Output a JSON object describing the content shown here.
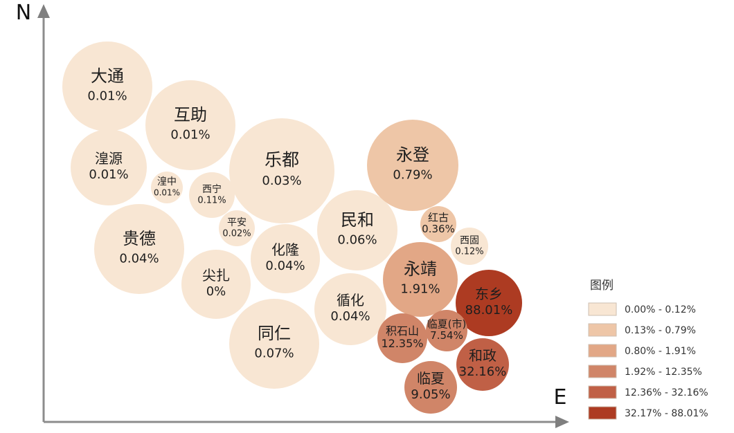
{
  "chart_data": {
    "type": "bubble",
    "axes": {
      "north_label": "N",
      "east_label": "E"
    },
    "legend": {
      "title": "图例",
      "classes": [
        {
          "label": "0.00% - 0.12%",
          "color": "#f8e6d3"
        },
        {
          "label": "0.13% - 0.79%",
          "color": "#eec6a7"
        },
        {
          "label": "0.80% - 1.91%",
          "color": "#e2a786"
        },
        {
          "label": "1.92% - 12.35%",
          "color": "#d08568"
        },
        {
          "label": "12.36% - 32.16%",
          "color": "#c06046"
        },
        {
          "label": "32.17% - 88.01%",
          "color": "#ad3b22"
        }
      ]
    },
    "bubbles": [
      {
        "name": "大通",
        "value_label": "0.01%",
        "value": 0.01,
        "class": 0
      },
      {
        "name": "互助",
        "value_label": "0.01%",
        "value": 0.01,
        "class": 0
      },
      {
        "name": "湟源",
        "value_label": "0.01%",
        "value": 0.01,
        "class": 0
      },
      {
        "name": "湟中",
        "value_label": "0.01%",
        "value": 0.01,
        "class": 0
      },
      {
        "name": "西宁",
        "value_label": "0.11%",
        "value": 0.11,
        "class": 0
      },
      {
        "name": "乐都",
        "value_label": "0.03%",
        "value": 0.03,
        "class": 0
      },
      {
        "name": "平安",
        "value_label": "0.02%",
        "value": 0.02,
        "class": 0
      },
      {
        "name": "贵德",
        "value_label": "0.04%",
        "value": 0.04,
        "class": 0
      },
      {
        "name": "尖扎",
        "value_label": "0%",
        "value": 0,
        "class": 0
      },
      {
        "name": "化隆",
        "value_label": "0.04%",
        "value": 0.04,
        "class": 0
      },
      {
        "name": "同仁",
        "value_label": "0.07%",
        "value": 0.07,
        "class": 0
      },
      {
        "name": "民和",
        "value_label": "0.06%",
        "value": 0.06,
        "class": 0
      },
      {
        "name": "循化",
        "value_label": "0.04%",
        "value": 0.04,
        "class": 0
      },
      {
        "name": "永登",
        "value_label": "0.79%",
        "value": 0.79,
        "class": 1
      },
      {
        "name": "红古",
        "value_label": "0.36%",
        "value": 0.36,
        "class": 1
      },
      {
        "name": "西固",
        "value_label": "0.12%",
        "value": 0.12,
        "class": 0
      },
      {
        "name": "永靖",
        "value_label": "1.91%",
        "value": 1.91,
        "class": 2
      },
      {
        "name": "东乡",
        "value_label": "88.01%",
        "value": 88.01,
        "class": 5
      },
      {
        "name": "积石山",
        "value_label": "12.35%",
        "value": 12.35,
        "class": 3
      },
      {
        "name": "临夏(市)",
        "value_label": "7.54%",
        "value": 7.54,
        "class": 3
      },
      {
        "name": "和政",
        "value_label": "32.16%",
        "value": 32.16,
        "class": 4
      },
      {
        "name": "临夏",
        "value_label": "9.05%",
        "value": 9.05,
        "class": 3
      }
    ]
  }
}
